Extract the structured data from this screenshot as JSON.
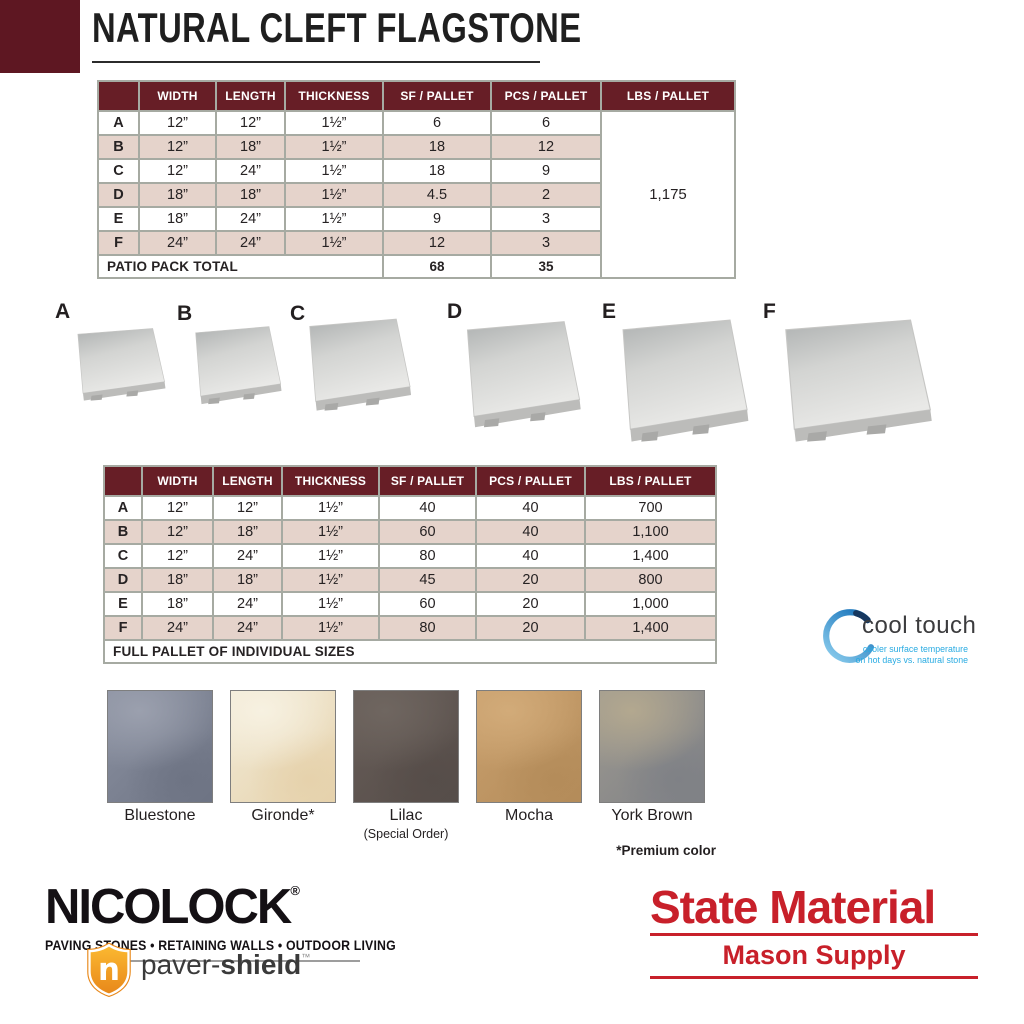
{
  "page": {
    "title": "NATURAL CLEFT FLAGSTONE"
  },
  "table_patio_pack": {
    "headers": [
      "",
      "WIDTH",
      "LENGTH",
      "THICKNESS",
      "SF / PALLET",
      "PCS / PALLET",
      "LBS / PALLET"
    ],
    "rows": [
      {
        "label": "A",
        "width": "12”",
        "length": "12”",
        "thickness": "1½”",
        "sf": "6",
        "pcs": "6"
      },
      {
        "label": "B",
        "width": "12”",
        "length": "18”",
        "thickness": "1½”",
        "sf": "18",
        "pcs": "12"
      },
      {
        "label": "C",
        "width": "12”",
        "length": "24”",
        "thickness": "1½”",
        "sf": "18",
        "pcs": "9"
      },
      {
        "label": "D",
        "width": "18”",
        "length": "18”",
        "thickness": "1½”",
        "sf": "4.5",
        "pcs": "2"
      },
      {
        "label": "E",
        "width": "18”",
        "length": "24”",
        "thickness": "1½”",
        "sf": "9",
        "pcs": "3"
      },
      {
        "label": "F",
        "width": "24”",
        "length": "24”",
        "thickness": "1½”",
        "sf": "12",
        "pcs": "3"
      }
    ],
    "lbs_merged": "1,175",
    "footer": {
      "label": "PATIO PACK TOTAL",
      "sf": "68",
      "pcs": "35"
    }
  },
  "stones": [
    {
      "label": "A"
    },
    {
      "label": "B"
    },
    {
      "label": "C"
    },
    {
      "label": "D"
    },
    {
      "label": "E"
    },
    {
      "label": "F"
    }
  ],
  "table_full_pallet": {
    "headers": [
      "",
      "WIDTH",
      "LENGTH",
      "THICKNESS",
      "SF / PALLET",
      "PCS / PALLET",
      "LBS / PALLET"
    ],
    "rows": [
      {
        "label": "A",
        "width": "12”",
        "length": "12”",
        "thickness": "1½”",
        "sf": "40",
        "pcs": "40",
        "lbs": "700"
      },
      {
        "label": "B",
        "width": "12”",
        "length": "18”",
        "thickness": "1½”",
        "sf": "60",
        "pcs": "40",
        "lbs": "1,100"
      },
      {
        "label": "C",
        "width": "12”",
        "length": "24”",
        "thickness": "1½”",
        "sf": "80",
        "pcs": "40",
        "lbs": "1,400"
      },
      {
        "label": "D",
        "width": "18”",
        "length": "18”",
        "thickness": "1½”",
        "sf": "45",
        "pcs": "20",
        "lbs": "800"
      },
      {
        "label": "E",
        "width": "18”",
        "length": "24”",
        "thickness": "1½”",
        "sf": "60",
        "pcs": "20",
        "lbs": "1,000"
      },
      {
        "label": "F",
        "width": "24”",
        "length": "24”",
        "thickness": "1½”",
        "sf": "80",
        "pcs": "20",
        "lbs": "1,400"
      }
    ],
    "footer": {
      "label": "FULL PALLET OF INDIVIDUAL SIZES"
    }
  },
  "cooltouch": {
    "name": "cool touch",
    "tagline_line1": "cooler surface temperature",
    "tagline_line2": "on hot days vs. natural stone"
  },
  "swatches": [
    {
      "name": "Bluestone",
      "c1": "#8a90a0",
      "c2": "#6e7484",
      "c3": "#9ba0ae"
    },
    {
      "name": "Gironde*",
      "c1": "#f1ead6",
      "c2": "#e6d2ac",
      "c3": "#f7f1e1"
    },
    {
      "name": "Lilac",
      "subname": "(Special Order)",
      "c1": "#675d58",
      "c2": "#564d49",
      "c3": "#6f6660"
    },
    {
      "name": "Mocha",
      "c1": "#c89f6d",
      "c2": "#b48c5a",
      "c3": "#d2ab79"
    },
    {
      "name": "York Brown",
      "c1": "#9d9990",
      "c2": "#7f8186",
      "c3": "#b3a88f"
    }
  ],
  "premium_note": "*Premium color",
  "nicolock": {
    "brand": "NICOLOCK",
    "reg": "®",
    "tagline": "PAVING STONES • RETAINING WALLS • OUTDOOR LIVING",
    "shield_letter": "n",
    "shield_label_left": "paver-",
    "shield_label_right": "shield",
    "tm": "™"
  },
  "state_material": {
    "line1": "State Material",
    "line2": "Mason Supply"
  },
  "colors": {
    "maroon_block": "#5e1722",
    "table_header": "#671e26",
    "row_stripe": "#e5d3cb",
    "table_border": "#a6aaa2",
    "state_material_red": "#c8202a",
    "cooltouch_blue": "#29abe2"
  }
}
